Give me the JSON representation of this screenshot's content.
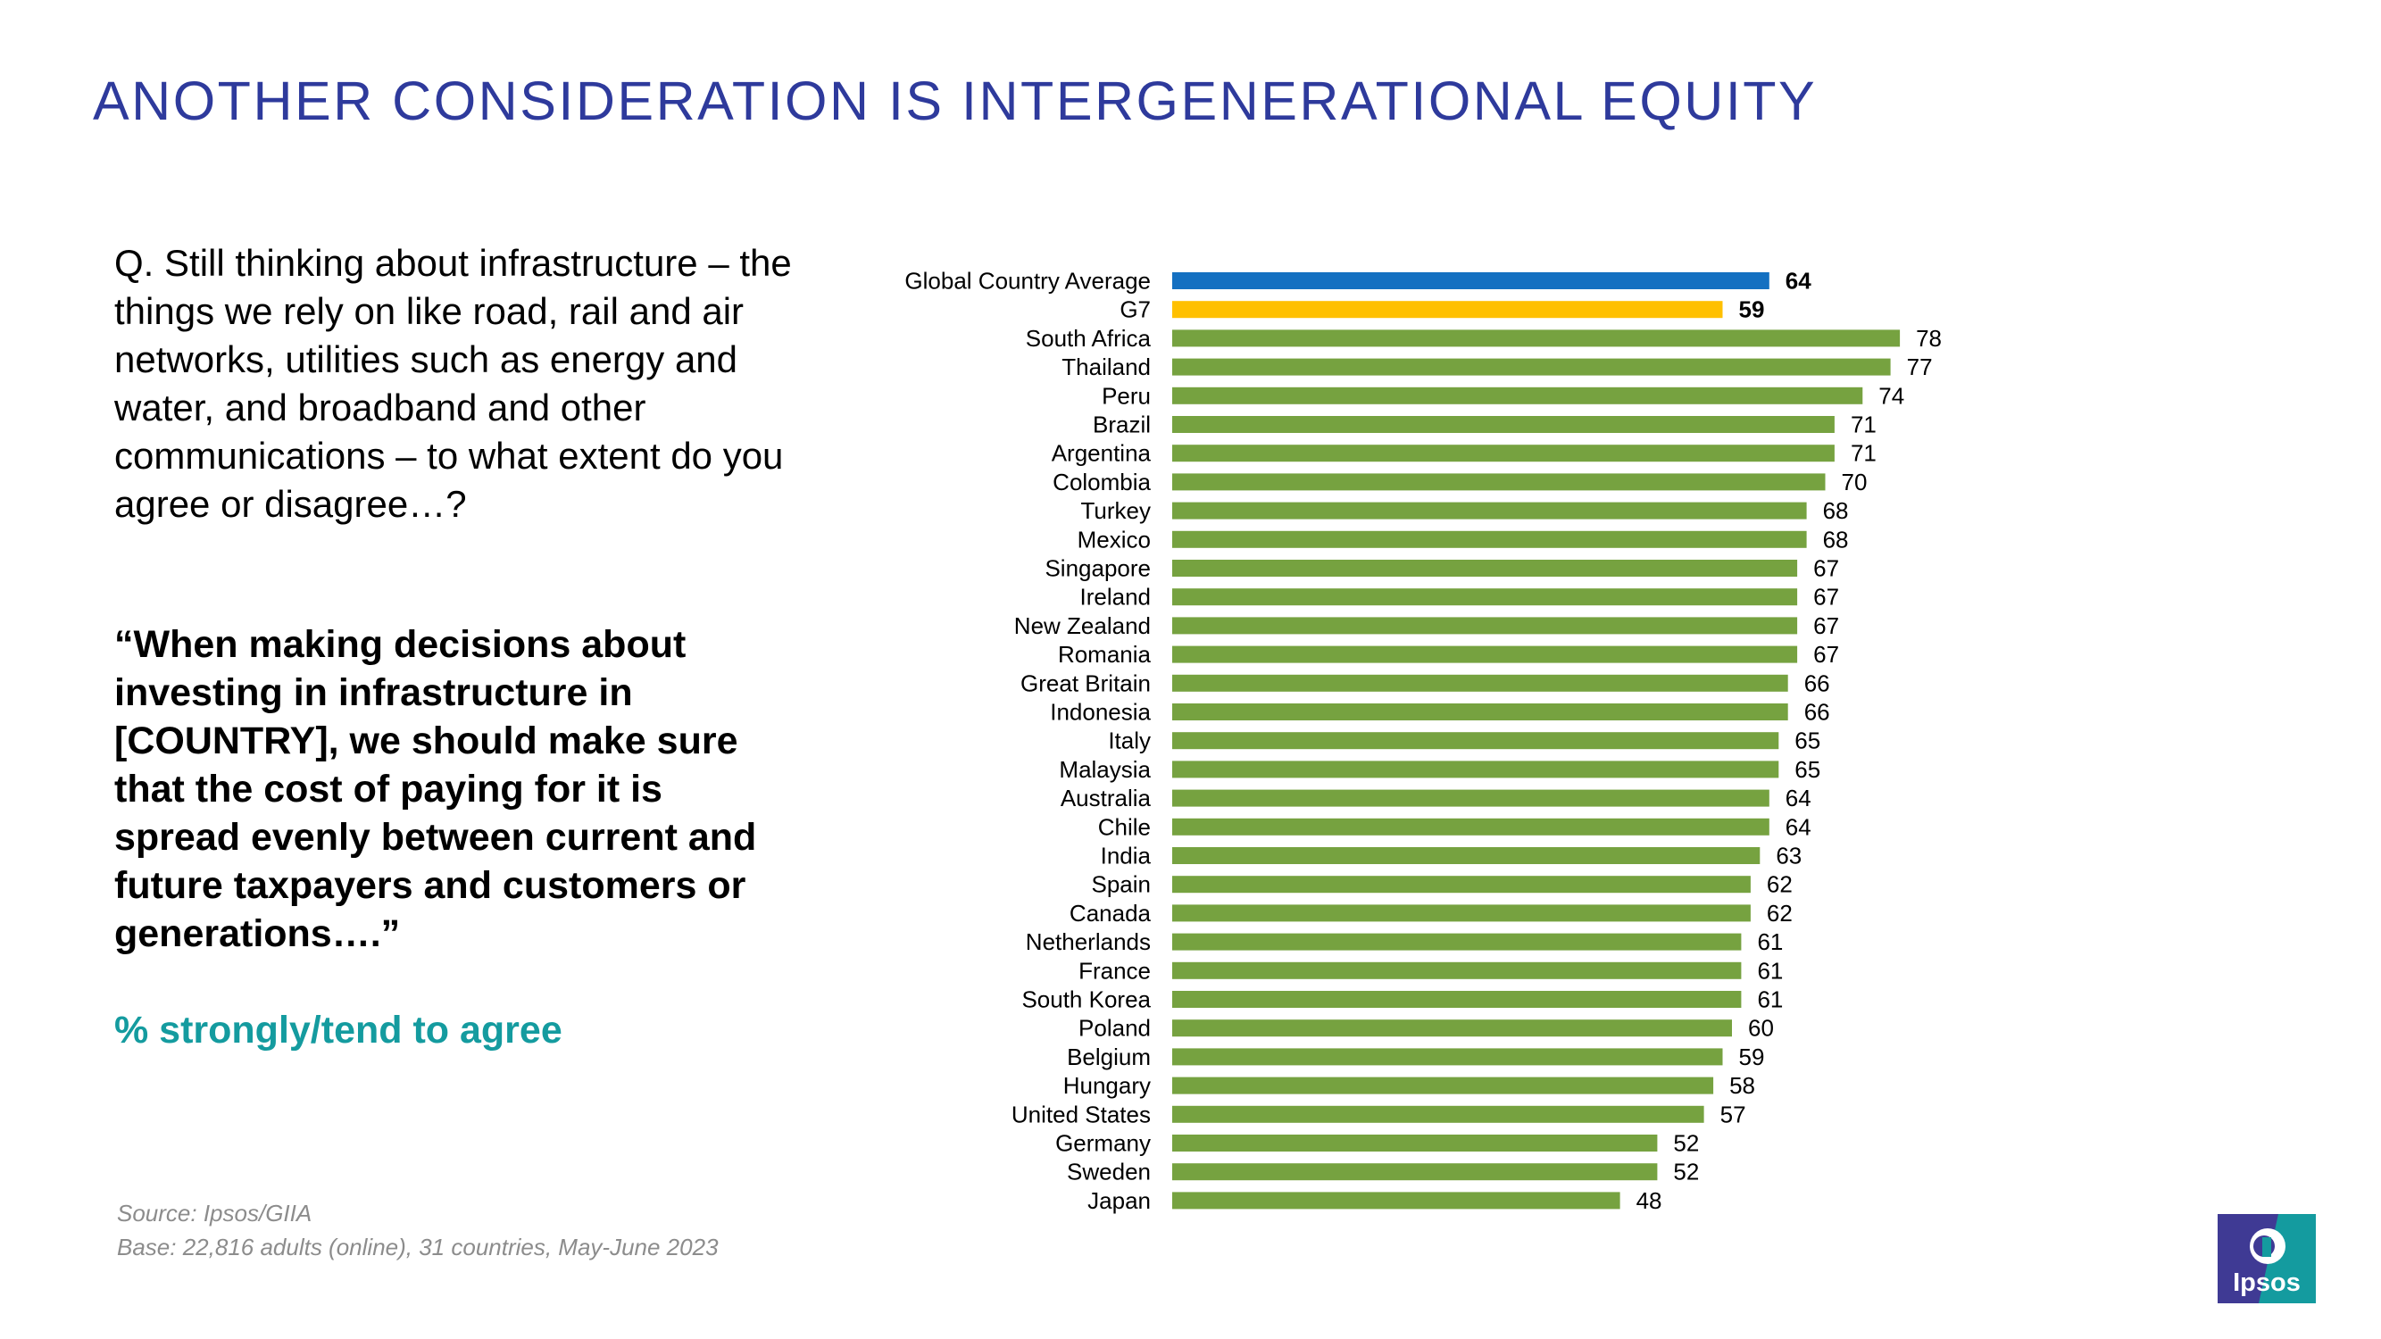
{
  "header": {
    "title": "ANOTHER CONSIDERATION IS INTERGENERATIONAL EQUITY"
  },
  "question": "Q. Still thinking about infrastructure – the things we rely on like road, rail and air networks, utilities such as energy and water, and broadband and other communications – to what extent do you agree or disagree…?",
  "statement": "“When making decisions about investing in infrastructure in [COUNTRY], we should make sure that the cost of paying for it is spread evenly between current and future taxpayers and customers or generations….”",
  "measure": "% strongly/tend to agree",
  "source": {
    "line1": "Source: Ipsos/GIIA",
    "line2": "Base: 22,816 adults (online), 31 countries, May-June 2023"
  },
  "logo": {
    "text": "Ipsos"
  },
  "colors": {
    "title": "#2e3a9c",
    "global": "#1470c1",
    "g7": "#ffc000",
    "country": "#76a240",
    "measure": "#149b9f"
  },
  "chart_data": {
    "type": "bar",
    "orientation": "horizontal",
    "categories": [
      "Global Country Average",
      "G7",
      "South Africa",
      "Thailand",
      "Peru",
      "Brazil",
      "Argentina",
      "Colombia",
      "Turkey",
      "Mexico",
      "Singapore",
      "Ireland",
      "New Zealand",
      "Romania",
      "Great Britain",
      "Indonesia",
      "Italy",
      "Malaysia",
      "Australia",
      "Chile",
      "India",
      "Spain",
      "Canada",
      "Netherlands",
      "France",
      "South Korea",
      "Poland",
      "Belgium",
      "Hungary",
      "United States",
      "Germany",
      "Sweden",
      "Japan"
    ],
    "values": [
      64,
      59,
      78,
      77,
      74,
      71,
      71,
      70,
      68,
      68,
      67,
      67,
      67,
      67,
      66,
      66,
      65,
      65,
      64,
      64,
      63,
      62,
      62,
      61,
      61,
      61,
      60,
      59,
      58,
      57,
      52,
      52,
      48
    ],
    "bar_colors": [
      "#1470c1",
      "#ffc000",
      "#76a240",
      "#76a240",
      "#76a240",
      "#76a240",
      "#76a240",
      "#76a240",
      "#76a240",
      "#76a240",
      "#76a240",
      "#76a240",
      "#76a240",
      "#76a240",
      "#76a240",
      "#76a240",
      "#76a240",
      "#76a240",
      "#76a240",
      "#76a240",
      "#76a240",
      "#76a240",
      "#76a240",
      "#76a240",
      "#76a240",
      "#76a240",
      "#76a240",
      "#76a240",
      "#76a240",
      "#76a240",
      "#76a240",
      "#76a240",
      "#76a240"
    ],
    "bold_labels": [
      true,
      true,
      false,
      false,
      false,
      false,
      false,
      false,
      false,
      false,
      false,
      false,
      false,
      false,
      false,
      false,
      false,
      false,
      false,
      false,
      false,
      false,
      false,
      false,
      false,
      false,
      false,
      false,
      false,
      false,
      false,
      false,
      false
    ],
    "xlim": [
      0,
      100
    ],
    "grid": false,
    "legend": "none"
  }
}
